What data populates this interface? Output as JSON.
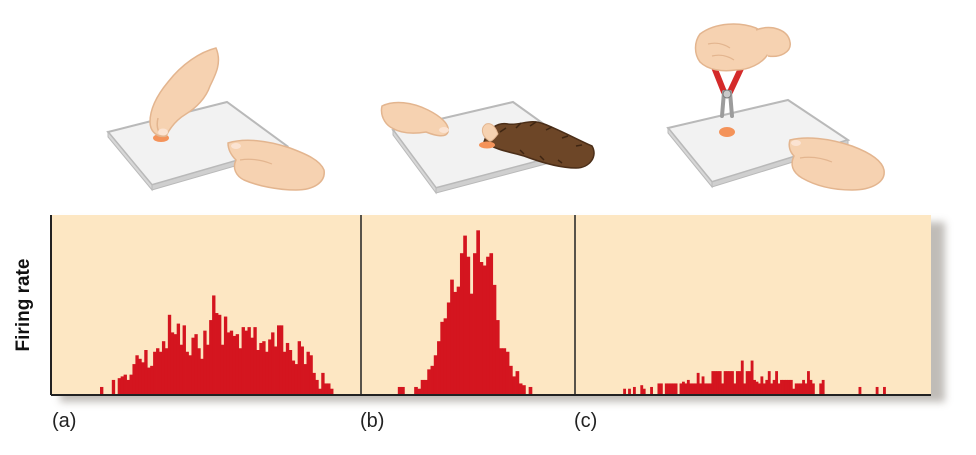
{
  "figure": {
    "y_axis_label": "Firing rate",
    "panel_labels": [
      "(a)",
      "(b)",
      "(c)"
    ]
  },
  "colors": {
    "panel_bg": "#fde7c3",
    "shadow": "#b9b5b0",
    "bar": "#d4151f",
    "axis": "#222222",
    "skin": "#f6d2b1",
    "skin_shade": "#e3b58f",
    "nail": "#fbe3d2",
    "plate": "#f2f2f2",
    "plate_edge": "#b9b9b9",
    "blob": "#f4935a",
    "fur": "#6d4627",
    "tool": "#d42a2a",
    "metal": "#9c9c9c"
  },
  "illustrations": [
    {
      "icon": "hand-touching-skin-icon",
      "stimulus": "touch"
    },
    {
      "icon": "hand-with-fur-icon",
      "stimulus": "fur brush"
    },
    {
      "icon": "hand-with-pliers-icon",
      "stimulus": "pinch"
    }
  ],
  "chart_data": {
    "type": "bar",
    "ylabel": "Firing rate",
    "panels": [
      {
        "label": "(a)",
        "values": [
          4,
          0,
          0,
          0,
          8,
          0,
          9,
          10,
          11,
          8,
          11,
          17,
          22,
          20,
          18,
          25,
          15,
          16,
          24,
          26,
          24,
          30,
          26,
          45,
          35,
          34,
          40,
          28,
          39,
          24,
          22,
          32,
          34,
          26,
          20,
          36,
          28,
          42,
          56,
          46,
          45,
          28,
          44,
          35,
          36,
          33,
          34,
          26,
          38,
          36,
          38,
          32,
          38,
          25,
          29,
          30,
          24,
          31,
          35,
          27,
          39,
          39,
          24,
          29,
          25,
          19,
          17,
          30,
          27,
          17,
          24,
          22,
          12,
          8,
          3,
          12,
          6,
          6,
          3,
          0
        ]
      },
      {
        "label": "(b)",
        "values": [
          0,
          0,
          0,
          4,
          4,
          0,
          0,
          0,
          4,
          3,
          8,
          8,
          14,
          16,
          22,
          30,
          41,
          43,
          52,
          65,
          58,
          61,
          80,
          90,
          78,
          57,
          80,
          93,
          75,
          73,
          78,
          80,
          62,
          42,
          26,
          26,
          24,
          16,
          10,
          13,
          6,
          5,
          0,
          4,
          0,
          0,
          0,
          0
        ]
      },
      {
        "label": "(c)",
        "values": [
          0,
          0,
          0,
          0,
          0,
          0,
          0,
          3,
          0,
          3,
          0,
          4,
          0,
          0,
          5,
          3,
          0,
          0,
          4,
          0,
          0,
          6,
          6,
          0,
          6,
          6,
          6,
          6,
          6,
          0,
          6,
          7,
          6,
          8,
          6,
          6,
          6,
          12,
          6,
          10,
          6,
          6,
          6,
          13,
          13,
          13,
          13,
          6,
          13,
          13,
          13,
          13,
          6,
          13,
          13,
          19,
          6,
          13,
          13,
          19,
          8,
          7,
          6,
          10,
          6,
          8,
          13,
          6,
          8,
          13,
          6,
          8,
          8,
          8,
          8,
          8,
          3,
          6,
          6,
          6,
          8,
          6,
          13,
          8,
          6,
          0,
          0,
          6,
          8,
          0,
          0,
          0,
          0,
          0,
          0,
          0,
          0,
          0,
          0,
          0,
          0,
          0,
          0,
          4,
          0,
          0,
          0,
          0,
          0,
          0,
          4,
          0,
          0,
          4,
          0,
          0,
          0,
          0,
          0,
          0,
          0,
          0,
          0,
          0
        ]
      }
    ],
    "y_max": 100,
    "grid": false,
    "legend": "none"
  }
}
